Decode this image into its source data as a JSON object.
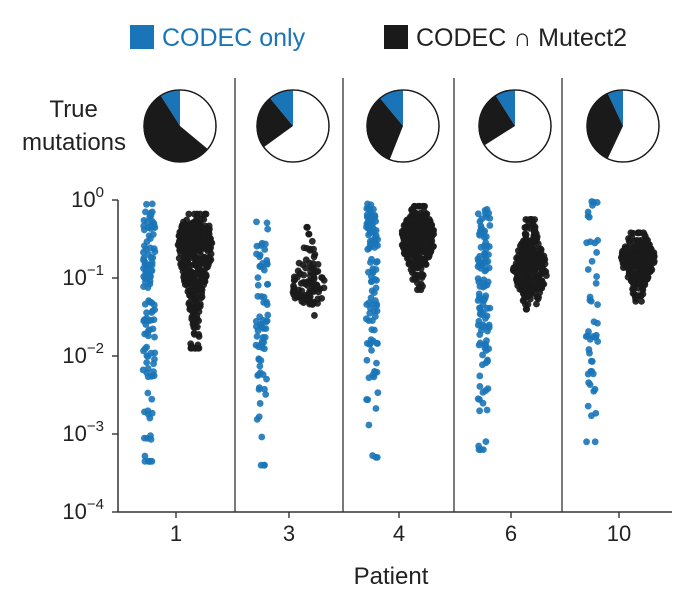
{
  "chart_data": {
    "type": "beeswarm",
    "title": "",
    "legend": [
      {
        "label": "CODEC only",
        "color": "#1a75b8"
      },
      {
        "label": "CODEC ∩ Mutect2",
        "color": "#1a1a1a"
      }
    ],
    "pie_label": "True\nmutations",
    "xlabel": "Patient",
    "ylabel": "",
    "y_scale": "log10",
    "ylim": [
      0.0001,
      1
    ],
    "y_ticks": [
      {
        "value": 1,
        "base": "10",
        "exp": "0"
      },
      {
        "value": 0.1,
        "base": "10",
        "exp": "−1"
      },
      {
        "value": 0.01,
        "base": "10",
        "exp": "−2"
      },
      {
        "value": 0.001,
        "base": "10",
        "exp": "−3"
      },
      {
        "value": 0.0001,
        "base": "10",
        "exp": "−4"
      }
    ],
    "categories": [
      "1",
      "3",
      "4",
      "6",
      "10"
    ],
    "pies": [
      {
        "patient": "1",
        "codec_only": 0.09,
        "codec_and_mutect2": 0.55,
        "other": 0.36
      },
      {
        "patient": "3",
        "codec_only": 0.11,
        "codec_and_mutect2": 0.24,
        "other": 0.65
      },
      {
        "patient": "4",
        "codec_only": 0.11,
        "codec_and_mutect2": 0.33,
        "other": 0.56
      },
      {
        "patient": "6",
        "codec_only": 0.09,
        "codec_and_mutect2": 0.25,
        "other": 0.66
      },
      {
        "patient": "10",
        "codec_only": 0.07,
        "codec_and_mutect2": 0.36,
        "other": 0.57
      }
    ],
    "series": [
      {
        "patient": "1",
        "name": "CODEC only",
        "n": 115,
        "log10_min": -3.35,
        "log10_max": -0.05,
        "log10_median": -1.25
      },
      {
        "patient": "1",
        "name": "CODEC ∩ Mutect2",
        "n": 420,
        "log10_min": -1.9,
        "log10_max": -0.18,
        "log10_median": -0.6
      },
      {
        "patient": "3",
        "name": "CODEC only",
        "n": 70,
        "log10_min": -3.4,
        "log10_max": -0.28,
        "log10_median": -1.2
      },
      {
        "patient": "3",
        "name": "CODEC ∩ Mutect2",
        "n": 90,
        "log10_min": -1.48,
        "log10_max": -0.35,
        "log10_median": -1.1
      },
      {
        "patient": "4",
        "name": "CODEC only",
        "n": 110,
        "log10_min": -3.3,
        "log10_max": -0.05,
        "log10_median": -0.7
      },
      {
        "patient": "4",
        "name": "CODEC ∩ Mutect2",
        "n": 300,
        "log10_min": -1.15,
        "log10_max": -0.08,
        "log10_median": -0.5
      },
      {
        "patient": "6",
        "name": "CODEC only",
        "n": 110,
        "log10_min": -3.2,
        "log10_max": -0.12,
        "log10_median": -1.0
      },
      {
        "patient": "6",
        "name": "CODEC ∩ Mutect2",
        "n": 300,
        "log10_min": -1.4,
        "log10_max": -0.25,
        "log10_median": -0.9
      },
      {
        "patient": "10",
        "name": "CODEC only",
        "n": 45,
        "log10_min": -3.1,
        "log10_max": -0.02,
        "log10_median": -1.5
      },
      {
        "patient": "10",
        "name": "CODEC ∩ Mutect2",
        "n": 250,
        "log10_min": -1.3,
        "log10_max": -0.42,
        "log10_median": -0.75
      }
    ]
  },
  "colors": {
    "codec_only": "#1a75b8",
    "both": "#1a1a1a",
    "other": "#ffffff"
  }
}
